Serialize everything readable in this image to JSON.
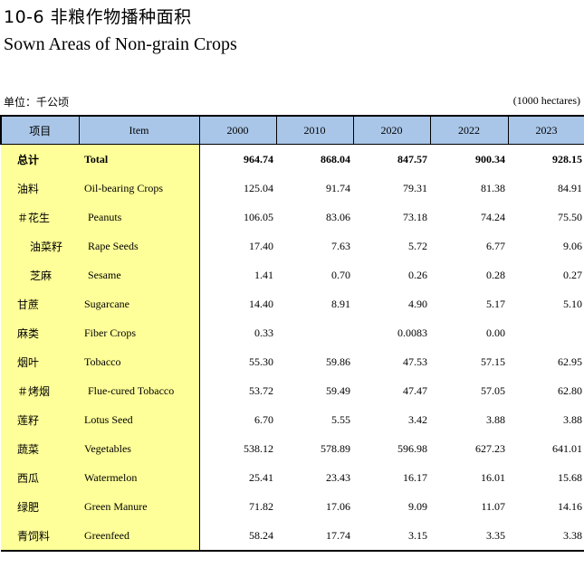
{
  "title": {
    "cn": "10-6  非粮作物播种面积",
    "en": "Sown Areas of Non-grain Crops"
  },
  "unit": {
    "cn": "单位：千公顷",
    "en": "(1000 hectares)"
  },
  "columns": [
    "项目",
    "Item",
    "2000",
    "2010",
    "2020",
    "2022",
    "2023"
  ],
  "rows": [
    {
      "cn": "总计",
      "en": "Total",
      "values": [
        "964.74",
        "868.04",
        "847.57",
        "900.34",
        "928.15"
      ],
      "bold": true,
      "indent": false
    },
    {
      "cn": "油料",
      "en": "Oil-bearing Crops",
      "values": [
        "125.04",
        "91.74",
        "79.31",
        "81.38",
        "84.91"
      ],
      "bold": false,
      "indent": false
    },
    {
      "cn": "＃花生",
      "en": "Peanuts",
      "values": [
        "106.05",
        "83.06",
        "73.18",
        "74.24",
        "75.50"
      ],
      "bold": false,
      "indent": false
    },
    {
      "cn": "油菜籽",
      "en": "Rape Seeds",
      "values": [
        "17.40",
        "7.63",
        "5.72",
        "6.77",
        "9.06"
      ],
      "bold": false,
      "indent": true
    },
    {
      "cn": "芝麻",
      "en": "Sesame",
      "values": [
        "1.41",
        "0.70",
        "0.26",
        "0.28",
        "0.27"
      ],
      "bold": false,
      "indent": true
    },
    {
      "cn": "甘蔗",
      "en": "Sugarcane",
      "values": [
        "14.40",
        "8.91",
        "4.90",
        "5.17",
        "5.10"
      ],
      "bold": false,
      "indent": false
    },
    {
      "cn": "麻类",
      "en": "Fiber Crops",
      "values": [
        "0.33",
        "",
        "0.0083",
        "0.00",
        ""
      ],
      "bold": false,
      "indent": false
    },
    {
      "cn": "烟叶",
      "en": "Tobacco",
      "values": [
        "55.30",
        "59.86",
        "47.53",
        "57.15",
        "62.95"
      ],
      "bold": false,
      "indent": false
    },
    {
      "cn": "＃烤烟",
      "en": "Flue-cured Tobacco",
      "values": [
        "53.72",
        "59.49",
        "47.47",
        "57.05",
        "62.80"
      ],
      "bold": false,
      "indent": false
    },
    {
      "cn": "莲籽",
      "en": "Lotus Seed",
      "values": [
        "6.70",
        "5.55",
        "3.42",
        "3.88",
        "3.88"
      ],
      "bold": false,
      "indent": false
    },
    {
      "cn": "蔬菜",
      "en": "Vegetables",
      "values": [
        "538.12",
        "578.89",
        "596.98",
        "627.23",
        "641.01"
      ],
      "bold": false,
      "indent": false
    },
    {
      "cn": "西瓜",
      "en": "Watermelon",
      "values": [
        "25.41",
        "23.43",
        "16.17",
        "16.01",
        "15.68"
      ],
      "bold": false,
      "indent": false
    },
    {
      "cn": "绿肥",
      "en": "Green Manure",
      "values": [
        "71.82",
        "17.06",
        "9.09",
        "11.07",
        "14.16"
      ],
      "bold": false,
      "indent": false
    },
    {
      "cn": "青饲料",
      "en": "Greenfeed",
      "values": [
        "58.24",
        "17.74",
        "3.15",
        "3.35",
        "3.38"
      ],
      "bold": false,
      "indent": false
    }
  ]
}
